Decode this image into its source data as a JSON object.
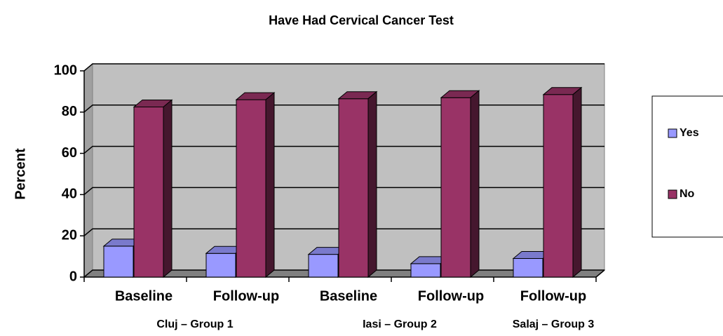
{
  "chart_data": {
    "type": "bar3d",
    "title": "Have Had Cervical Cancer Test",
    "ylabel": "Percent",
    "categories": [
      "Baseline",
      "Follow-up",
      "Baseline",
      "Follow-up",
      "Follow-up"
    ],
    "groups": [
      "Cluj – Group 1",
      null,
      "Iasi – Group 2",
      null,
      "Salaj – Group 3"
    ],
    "series": [
      {
        "name": "Yes",
        "color": "#9999ff",
        "values": [
          15,
          11.5,
          11,
          6.5,
          9
        ]
      },
      {
        "name": "No",
        "color": "#993366",
        "values": [
          82.5,
          86,
          86.5,
          87,
          88.5
        ]
      }
    ],
    "ylim": [
      0,
      100
    ],
    "yticks": [
      0,
      20,
      40,
      60,
      80,
      100
    ],
    "grid": true,
    "legend": "right"
  }
}
